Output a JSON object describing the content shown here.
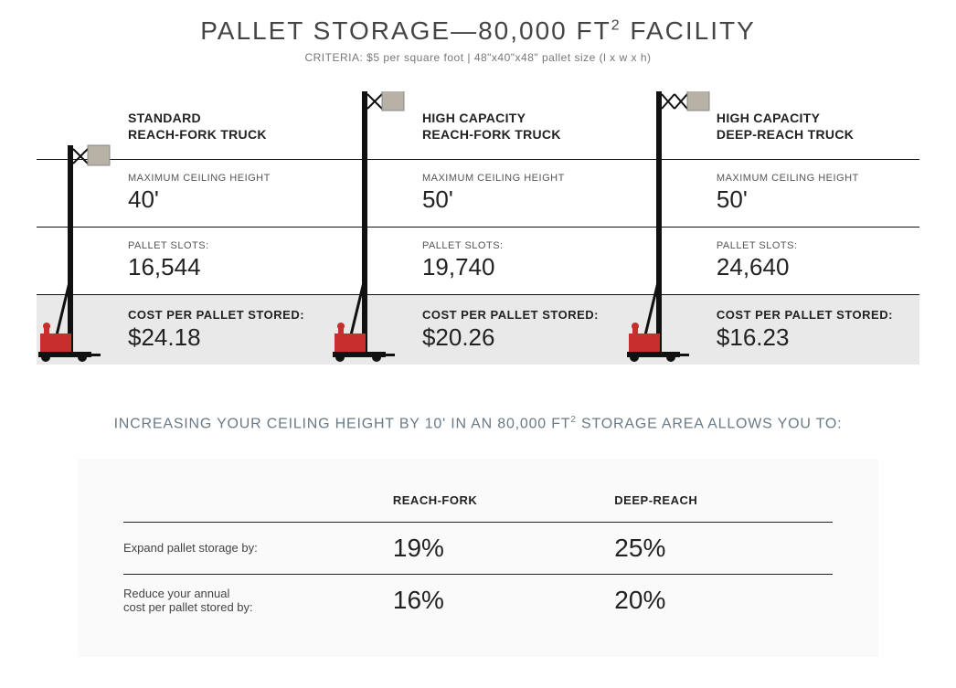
{
  "header": {
    "title_pre": "PALLET STORAGE—80,000 FT",
    "title_sup": "2",
    "title_post": " FACILITY",
    "subtitle": "CRITERIA: $5 per square foot | 48\"x40\"x48\" pallet size (l x w x h)"
  },
  "row_labels": {
    "ceiling": "MAXIMUM CEILING HEIGHT",
    "slots": "PALLET SLOTS:",
    "cost": "COST PER PALLET STORED:"
  },
  "trucks": [
    {
      "name_line1": "STANDARD",
      "name_line2": "REACH-FORK TRUCK",
      "ceiling": "40'",
      "slots": "16,544",
      "cost": "$24.18",
      "mast_height": 220,
      "reach_type": "single"
    },
    {
      "name_line1": "HIGH CAPACITY",
      "name_line2": "REACH-FORK TRUCK",
      "ceiling": "50'",
      "slots": "19,740",
      "cost": "$20.26",
      "mast_height": 280,
      "reach_type": "single"
    },
    {
      "name_line1": "HIGH CAPACITY",
      "name_line2": "DEEP-REACH TRUCK",
      "ceiling": "50'",
      "slots": "24,640",
      "cost": "$16.23",
      "mast_height": 280,
      "reach_type": "double"
    }
  ],
  "style": {
    "truck_body_color": "#c92e2e",
    "truck_mast_color": "#111111",
    "pallet_box_color": "#b8b2a6",
    "row_border_color": "#111111",
    "shade_bg": "#e9e9e9",
    "benefits_bg": "#fafafa",
    "title_color": "#444444",
    "subtitle_color": "#777777",
    "benefits_title_color": "#6a7a86"
  },
  "benefits": {
    "title_pre": "INCREASING YOUR CEILING HEIGHT BY 10' IN AN 80,000 FT",
    "title_sup": "2",
    "title_post": " STORAGE AREA ALLOWS YOU TO:",
    "columns": [
      "REACH-FORK",
      "DEEP-REACH"
    ],
    "rows": [
      {
        "label": "Expand pallet storage by:",
        "values": [
          "19%",
          "25%"
        ]
      },
      {
        "label": "Reduce your annual\ncost per pallet stored by:",
        "values": [
          "16%",
          "20%"
        ]
      }
    ]
  }
}
